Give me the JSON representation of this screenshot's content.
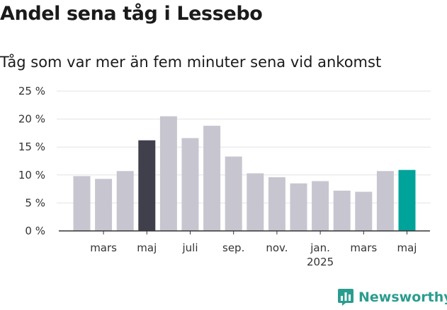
{
  "title": "Andel sena tåg i Lessebo",
  "subtitle": "Tåg som var mer än fem minuter sena vid ankomst",
  "brand": {
    "name": "Newsworthy",
    "icon": "bar-chart-logo-icon",
    "color": "#2a9d8f"
  },
  "colors": {
    "default": "#c7c6d0",
    "highlight_dark": "#403f4c",
    "highlight_latest": "#00a39a",
    "grid": "#e3e3e3"
  },
  "chart_data": {
    "type": "bar",
    "title": "Andel sena tåg i Lessebo",
    "subtitle": "Tåg som var mer än fem minuter sena vid ankomst",
    "categories": [
      "2024-02",
      "2024-03",
      "2024-04",
      "2024-05",
      "2024-06",
      "2024-07",
      "2024-08",
      "2024-09",
      "2024-10",
      "2024-11",
      "2024-12",
      "2025-01",
      "2025-02",
      "2025-03",
      "2025-04",
      "2025-05"
    ],
    "values": [
      9.8,
      9.3,
      10.7,
      16.2,
      20.5,
      16.6,
      18.8,
      13.3,
      10.3,
      9.6,
      8.5,
      8.9,
      7.2,
      7.0,
      10.7,
      10.9
    ],
    "highlight": {
      "2024-05": "dark",
      "2025-05": "latest"
    },
    "ylim": [
      0,
      25
    ],
    "yticks": [
      0,
      5,
      10,
      15,
      20,
      25
    ],
    "ytick_labels": [
      "0 %",
      "5 %",
      "10 %",
      "15 %",
      "20 %",
      "25 %"
    ],
    "xtick_labels": [
      {
        "category": "2024-03",
        "label": "mars",
        "sublabel": ""
      },
      {
        "category": "2024-05",
        "label": "maj",
        "sublabel": ""
      },
      {
        "category": "2024-07",
        "label": "juli",
        "sublabel": ""
      },
      {
        "category": "2024-09",
        "label": "sep.",
        "sublabel": ""
      },
      {
        "category": "2024-11",
        "label": "nov.",
        "sublabel": ""
      },
      {
        "category": "2025-01",
        "label": "jan.",
        "sublabel": "2025"
      },
      {
        "category": "2025-03",
        "label": "mars",
        "sublabel": ""
      },
      {
        "category": "2025-05",
        "label": "maj",
        "sublabel": ""
      }
    ],
    "grid": true,
    "legend": "none"
  }
}
